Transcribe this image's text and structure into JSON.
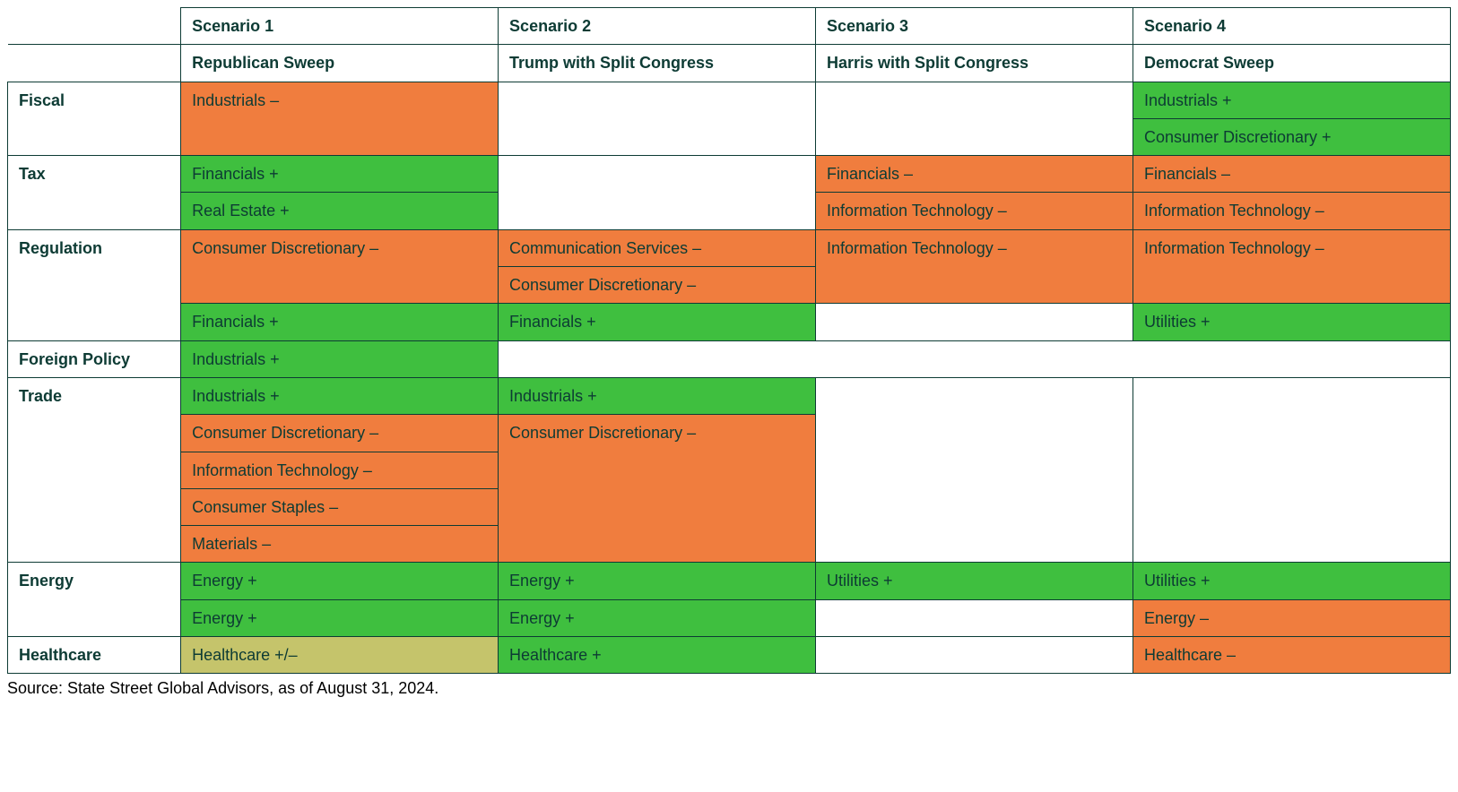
{
  "colors": {
    "positive": "#3fbf3f",
    "negative": "#f07d3e",
    "mixed": "#c5c46b",
    "blank": "#ffffff",
    "text": "#0d3b34",
    "border": "#0d3b34"
  },
  "header": {
    "row1": [
      "Scenario 1",
      "Scenario 2",
      "Scenario 3",
      "Scenario 4"
    ],
    "row2": [
      "Republican Sweep",
      "Trump with Split Congress",
      "Harris with Split Congress",
      "Democrat Sweep"
    ]
  },
  "categories": [
    "Fiscal",
    "Tax",
    "Regulation",
    "Foreign Policy",
    "Trade",
    "Energy",
    "Healthcare"
  ],
  "cells": {
    "fiscal_s1": "Industrials –",
    "fiscal_s4a": "Industrials +",
    "fiscal_s4b": "Consumer Discretionary +",
    "tax_s1a": "Financials +",
    "tax_s1b": "Real Estate +",
    "tax_s3a": "Financials –",
    "tax_s3b": "Information Technology –",
    "tax_s4a": "Financials –",
    "tax_s4b": "Information Technology –",
    "reg_s1a": "Consumer Discretionary –",
    "reg_s1b": "Financials +",
    "reg_s2a": "Communication Services –",
    "reg_s2b": "Consumer Discretionary –",
    "reg_s2c": "Financials +",
    "reg_s3a": "Information Technology –",
    "reg_s4a": "Information Technology –",
    "reg_s4b": "Utilities +",
    "fp_s1": "Industrials +",
    "trade_s1a": "Industrials +",
    "trade_s1b": "Consumer Discretionary –",
    "trade_s1c": "Information Technology –",
    "trade_s1d": "Consumer Staples –",
    "trade_s1e": "Materials –",
    "trade_s2a": "Industrials +",
    "trade_s2b": "Consumer Discretionary –",
    "energy_s1a": "Energy +",
    "energy_s1b": "Energy +",
    "energy_s2a": "Energy +",
    "energy_s2b": "Energy +",
    "energy_s3a": "Utilities +",
    "energy_s4a": "Utilities +",
    "energy_s4b": "Energy –",
    "hc_s1": "Healthcare +/–",
    "hc_s2": "Healthcare +",
    "hc_s4": "Healthcare –"
  },
  "source": "Source: State Street Global Advisors, as of August 31, 2024."
}
